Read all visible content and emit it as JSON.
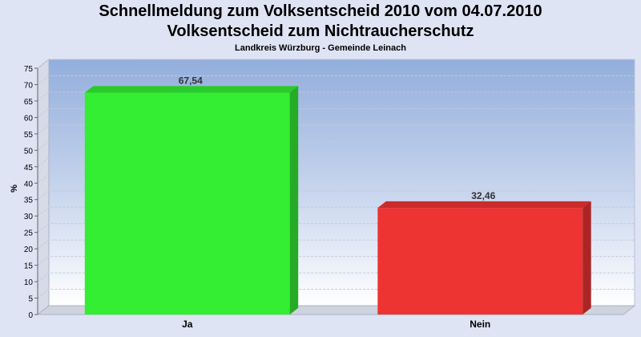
{
  "chart_data": {
    "type": "bar",
    "title": "Schnellmeldung zum Volksentscheid 2010 vom 04.07.2010",
    "subtitle": "Volksentscheid zum Nichtraucherschutz",
    "subtitle2": "Landkreis Würzburg - Gemeinde Leinach",
    "ylabel": "%",
    "xlabel": "",
    "ylim": [
      0,
      75
    ],
    "yticks": [
      0,
      5,
      10,
      15,
      20,
      25,
      30,
      35,
      40,
      45,
      50,
      55,
      60,
      65,
      70,
      75
    ],
    "categories": [
      "Ja",
      "Nein"
    ],
    "values": [
      67.54,
      32.46
    ],
    "value_labels": [
      "67,54",
      "32,46"
    ],
    "colors": [
      "#33ee33",
      "#ee3333"
    ],
    "grid": true,
    "legend": "none"
  }
}
